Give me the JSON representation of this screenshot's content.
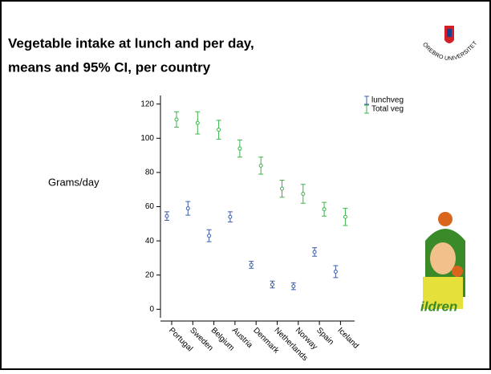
{
  "slide": {
    "title_line1": "Vegetable intake at lunch and per day,",
    "title_line2": "means and 95% CI, per country",
    "logo_text": "ÖREBRO UNIVERSITET",
    "illustration_text": "ildren"
  },
  "chart_data": {
    "type": "errorbar",
    "y_label": "Grams/day",
    "categories": [
      "Portugal",
      "Sweden",
      "Belgium",
      "Austria",
      "Denmark",
      "Netherlands",
      "Norway",
      "Spain",
      "Iceland"
    ],
    "series": [
      {
        "name": "lunchveg",
        "color": "#3a5ea8",
        "values": [
          54.5,
          59,
          43,
          54,
          26,
          14.5,
          13.5,
          33.5,
          22
        ],
        "errors": [
          2.5,
          4,
          3.5,
          3,
          2,
          2,
          2,
          2.5,
          3.5
        ]
      },
      {
        "name": "Total veg",
        "color": "#3cb44b",
        "values": [
          111,
          109,
          105,
          94,
          84,
          70.5,
          67.5,
          58.5,
          54
        ],
        "errors": [
          4.5,
          6.5,
          5.5,
          5,
          5,
          5,
          5.5,
          4,
          5
        ]
      }
    ],
    "ylim": [
      -5,
      125
    ],
    "yticks": [
      0,
      20,
      40,
      60,
      80,
      100,
      120
    ],
    "legend": "upper right"
  }
}
